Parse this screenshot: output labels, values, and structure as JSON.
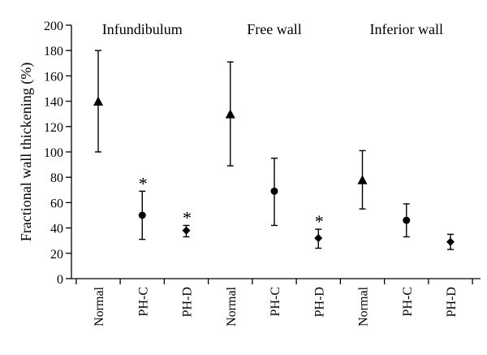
{
  "chart_data": {
    "type": "scatter",
    "title": "",
    "xlabel": "",
    "ylabel": "Fractional wall thickening (%)",
    "ylim": [
      0,
      200
    ],
    "yticks": [
      0,
      20,
      40,
      60,
      80,
      100,
      120,
      140,
      160,
      180,
      200
    ],
    "grid": false,
    "legend": "none",
    "categories": [
      "Normal",
      "PH-C",
      "PH-D",
      "Normal",
      "PH-C",
      "PH-D",
      "Normal",
      "PH-C",
      "PH-D"
    ],
    "groups": [
      {
        "label": "Infundibulum",
        "start": 0,
        "count": 3
      },
      {
        "label": "Free wall",
        "start": 3,
        "count": 3
      },
      {
        "label": "Inferior wall",
        "start": 6,
        "count": 3
      }
    ],
    "points": [
      {
        "value": 140,
        "low": 100,
        "high": 180,
        "marker": "triangle",
        "significant": false
      },
      {
        "value": 50,
        "low": 31,
        "high": 69,
        "marker": "circle",
        "significant": true
      },
      {
        "value": 38,
        "low": 33,
        "high": 42,
        "marker": "diamond",
        "significant": true
      },
      {
        "value": 130,
        "low": 89,
        "high": 171,
        "marker": "triangle",
        "significant": false
      },
      {
        "value": 69,
        "low": 42,
        "high": 95,
        "marker": "circle",
        "significant": false
      },
      {
        "value": 32,
        "low": 24,
        "high": 39,
        "marker": "diamond",
        "significant": true
      },
      {
        "value": 78,
        "low": 55,
        "high": 101,
        "marker": "triangle",
        "significant": false
      },
      {
        "value": 46,
        "low": 33,
        "high": 59,
        "marker": "circle",
        "significant": false
      },
      {
        "value": 29,
        "low": 23,
        "high": 35,
        "marker": "diamond",
        "significant": false
      }
    ],
    "significance_symbol": "*",
    "color": "#000000"
  }
}
